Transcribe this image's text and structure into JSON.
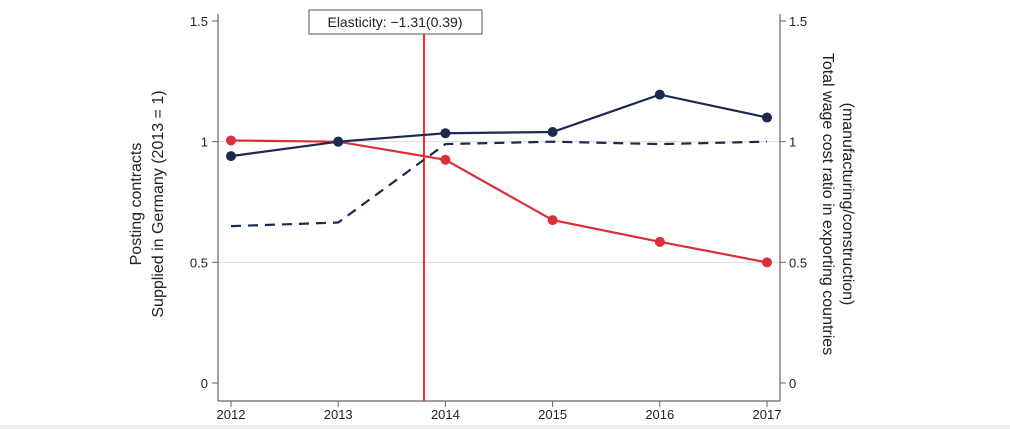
{
  "chart_data": {
    "type": "line",
    "x": [
      2012,
      2013,
      2014,
      2015,
      2016,
      2017
    ],
    "xlim": [
      2012,
      2017
    ],
    "x_ticks": [
      "2012",
      "2013",
      "2014",
      "2015",
      "2016",
      "2017"
    ],
    "y_left": {
      "label_line1": "Posting contracts",
      "label_line2": "Supplied in Germany (2013 = 1)",
      "lim": [
        0,
        1.5
      ],
      "ticks": [
        "0",
        "0.5",
        "1",
        "1.5"
      ]
    },
    "y_right": {
      "label_line1": "Total wage cost ratio in exporting countries",
      "label_line2": "(manufacturing/construction)",
      "lim": [
        0,
        1.5
      ],
      "ticks": [
        "0",
        "0.5",
        "1",
        "1.5"
      ]
    },
    "grid": {
      "horizontal": [
        0.5,
        1
      ]
    },
    "series": [
      {
        "axis": "left",
        "style": "solid-markers",
        "color": "#d9303a",
        "values": [
          1.005,
          1.0,
          0.925,
          0.675,
          0.585,
          0.5
        ]
      },
      {
        "axis": "right",
        "style": "solid-markers",
        "color": "#1b2a4e",
        "values": [
          0.94,
          1.0,
          1.035,
          1.04,
          1.195,
          1.1
        ]
      },
      {
        "axis": "right",
        "style": "dashed",
        "color": "#1b2a4e",
        "values": [
          0.65,
          0.665,
          0.99,
          1.0,
          0.99,
          1.0
        ]
      }
    ],
    "vertical_line": {
      "x": 2013.8,
      "color": "#ff2a1a"
    },
    "annotation": "Elasticity: −1.31(0.39)"
  }
}
